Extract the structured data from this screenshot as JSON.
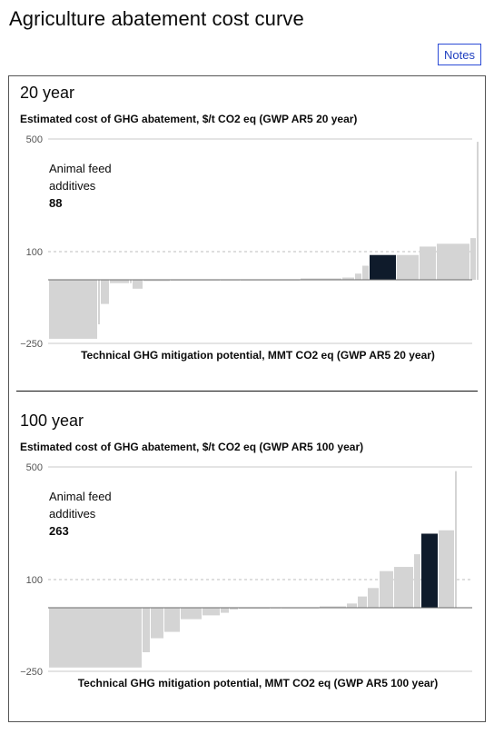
{
  "page": {
    "title": "Agriculture abatement cost curve"
  },
  "notes_label": "Notes",
  "colors": {
    "bar": "#d4d4d4",
    "highlight": "#0f1b2b",
    "zero_line": "#6a6a6a",
    "grid": "#c8c8c8",
    "ref": "#bdbdbd"
  },
  "chart_data": [
    {
      "type": "bar",
      "title": "20 year",
      "ylabel": "Estimated cost of GHG abatement, $/t CO2 eq (GWP AR5 20 year)",
      "xlabel": "Technical GHG mitigation potential, MMT CO2 eq (GWP AR5 20 year)",
      "ylim": [
        -250,
        500
      ],
      "yticks": [
        "500",
        "100",
        "−250"
      ],
      "reference_line": 100,
      "grid": true,
      "callout": {
        "label": "Animal feed additives",
        "value": "88"
      },
      "bars": [
        {
          "width": 54,
          "value": -232
        },
        {
          "width": 3,
          "value": -175
        },
        {
          "width": 10,
          "value": -95
        },
        {
          "width": 22,
          "value": -13
        },
        {
          "width": 3,
          "value": -13
        },
        {
          "width": 12,
          "value": -35
        },
        {
          "width": 30,
          "value": -5
        },
        {
          "width": 55,
          "value": -3
        },
        {
          "width": 22,
          "value": -2
        },
        {
          "width": 66,
          "value": 0
        },
        {
          "width": 46,
          "value": 5
        },
        {
          "width": 14,
          "value": 8
        },
        {
          "width": 8,
          "value": 22
        },
        {
          "width": 8,
          "value": 50
        },
        {
          "width": 30,
          "value": 88,
          "highlight": true
        },
        {
          "width": 25,
          "value": 88
        },
        {
          "width": 19,
          "value": 118
        },
        {
          "width": 37,
          "value": 128
        },
        {
          "width": 7,
          "value": 148
        },
        {
          "width": 3,
          "value": 490
        }
      ]
    },
    {
      "type": "bar",
      "title": "100 year",
      "ylabel": "Estimated cost of GHG abatement, $/t CO2 eq (GWP AR5 100 year)",
      "xlabel": "Technical GHG mitigation potential, MMT CO2 eq (GWP AR5 100 year)",
      "ylim": [
        -250,
        500
      ],
      "yticks": [
        "500",
        "100",
        "−250"
      ],
      "reference_line": 100,
      "grid": true,
      "callout": {
        "label": "Animal feed additives",
        "value": "263"
      },
      "bars": [
        {
          "width": 103,
          "value": -235
        },
        {
          "width": 9,
          "value": -175
        },
        {
          "width": 15,
          "value": -120
        },
        {
          "width": 18,
          "value": -95
        },
        {
          "width": 24,
          "value": -45
        },
        {
          "width": 20,
          "value": -30
        },
        {
          "width": 10,
          "value": -20
        },
        {
          "width": 10,
          "value": -7
        },
        {
          "width": 35,
          "value": -4
        },
        {
          "width": 12,
          "value": -2
        },
        {
          "width": 42,
          "value": -1
        },
        {
          "width": 30,
          "value": 5
        },
        {
          "width": 12,
          "value": 15
        },
        {
          "width": 11,
          "value": 40
        },
        {
          "width": 13,
          "value": 70
        },
        {
          "width": 16,
          "value": 130
        },
        {
          "width": 22,
          "value": 145
        },
        {
          "width": 8,
          "value": 190
        },
        {
          "width": 19,
          "value": 263,
          "highlight": true
        },
        {
          "width": 18,
          "value": 275
        },
        {
          "width": 3,
          "value": 485
        }
      ]
    }
  ]
}
